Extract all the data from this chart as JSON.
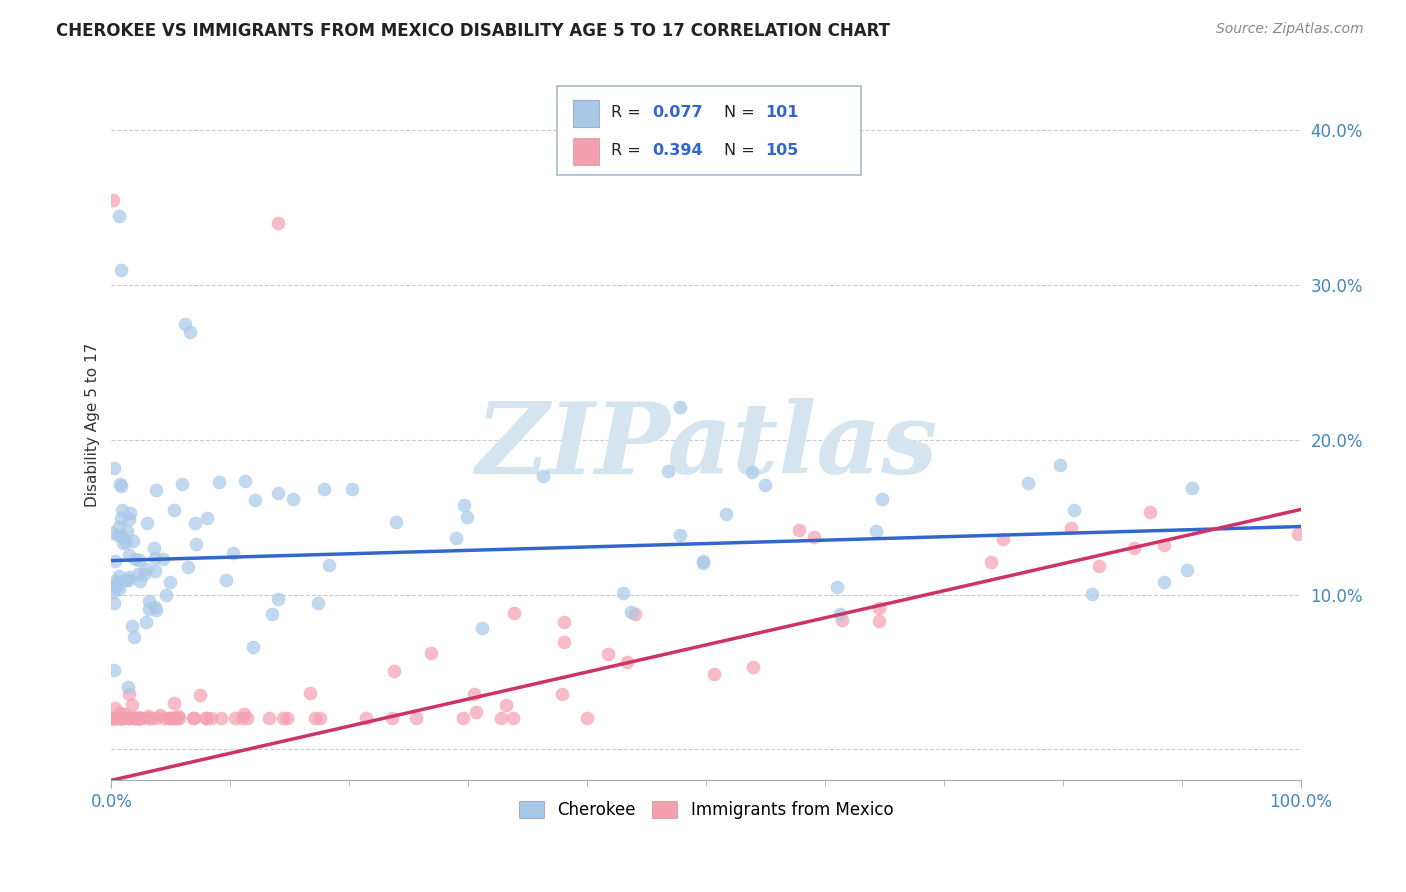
{
  "title": "CHEROKEE VS IMMIGRANTS FROM MEXICO DISABILITY AGE 5 TO 17 CORRELATION CHART",
  "source": "Source: ZipAtlas.com",
  "ylabel": "Disability Age 5 to 17",
  "xlim": [
    0.0,
    1.0
  ],
  "ylim": [
    -0.02,
    0.44
  ],
  "yticks": [
    0.0,
    0.1,
    0.2,
    0.3,
    0.4
  ],
  "ytick_labels": [
    "",
    "10.0%",
    "20.0%",
    "30.0%",
    "40.0%"
  ],
  "legend_r_blue": "R = 0.077",
  "legend_n_blue": "N = 101",
  "legend_r_pink": "R = 0.394",
  "legend_n_pink": "N = 105",
  "blue_scatter_color": "#a8c8e8",
  "pink_scatter_color": "#f4a0b0",
  "blue_line_color": "#3366cc",
  "pink_line_color": "#cc3366",
  "legend_box_color": "#e8f0f8",
  "legend_border_color": "#aabbcc",
  "watermark_text": "ZIPatlas",
  "watermark_color": "#d5e5f0",
  "background_color": "#ffffff",
  "grid_color": "#cccccc",
  "title_color": "#222222",
  "axis_tick_color": "#4488bb",
  "ylabel_color": "#333333",
  "blue_label": "Cherokee",
  "pink_label": "Immigrants from Mexico",
  "blue_trend_intercept": 0.122,
  "blue_trend_slope": 0.022,
  "pink_trend_intercept": -0.02,
  "pink_trend_slope": 0.175
}
